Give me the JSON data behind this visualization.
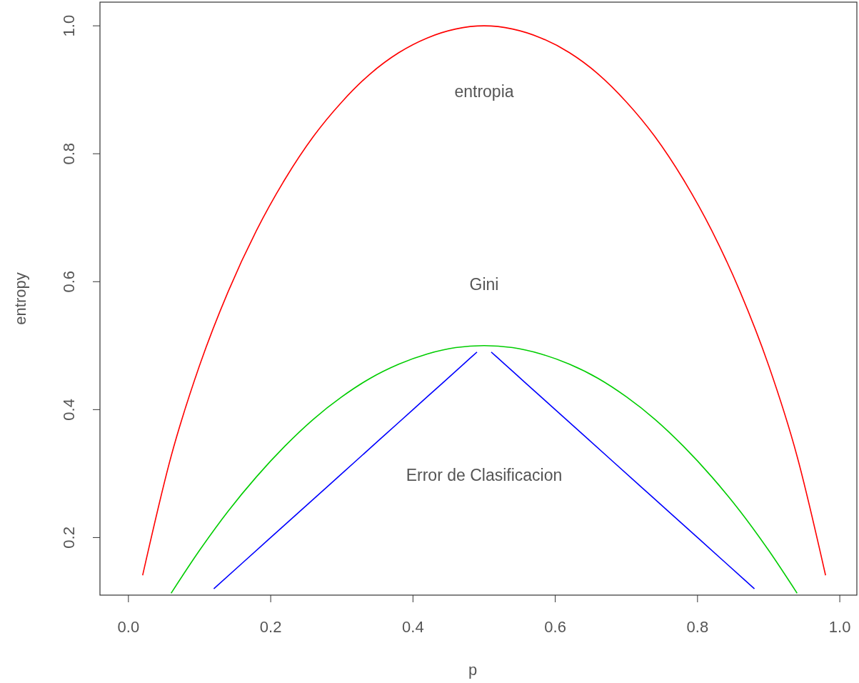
{
  "chart_data": {
    "type": "line",
    "xlabel": "p",
    "ylabel": "entropy",
    "xlim": [
      -0.04,
      1.024
    ],
    "ylim": [
      0.11,
      1.037
    ],
    "xticks": [
      {
        "value": 0,
        "label": "0.0"
      },
      0.2,
      0.4,
      0.6,
      0.8,
      {
        "value": 1,
        "label": "1.0"
      }
    ],
    "yticks": [
      0.2,
      0.4,
      0.6,
      0.8,
      {
        "value": 1,
        "label": "1.0"
      }
    ],
    "grid": false,
    "marker": "none",
    "line_style": "solid",
    "series": [
      {
        "color": "#ff0000",
        "x": [
          0.02,
          0.06,
          0.1,
          0.14,
          0.18,
          0.22,
          0.26,
          0.3,
          0.34,
          0.38,
          0.42,
          0.46,
          0.5,
          0.54,
          0.58,
          0.62,
          0.66,
          0.7,
          0.74,
          0.78,
          0.82,
          0.86,
          0.9,
          0.94,
          0.98
        ],
        "values": [
          0.141,
          0.327,
          0.469,
          0.584,
          0.68,
          0.76,
          0.827,
          0.881,
          0.925,
          0.958,
          0.981,
          0.995,
          1.0,
          0.995,
          0.981,
          0.958,
          0.925,
          0.881,
          0.827,
          0.76,
          0.68,
          0.584,
          0.469,
          0.327,
          0.141
        ]
      },
      {
        "color": "#00cd00",
        "x": [
          0.06,
          0.1,
          0.14,
          0.18,
          0.22,
          0.26,
          0.3,
          0.34,
          0.38,
          0.42,
          0.46,
          0.5,
          0.54,
          0.58,
          0.62,
          0.66,
          0.7,
          0.74,
          0.78,
          0.82,
          0.86,
          0.9,
          0.94
        ],
        "values": [
          0.113,
          0.18,
          0.241,
          0.295,
          0.343,
          0.385,
          0.42,
          0.449,
          0.471,
          0.487,
          0.497,
          0.5,
          0.497,
          0.487,
          0.471,
          0.449,
          0.42,
          0.385,
          0.343,
          0.295,
          0.241,
          0.18,
          0.113
        ]
      },
      {
        "color": "#0000ff",
        "x": [
          0.12,
          0.16,
          0.2,
          0.24,
          0.28,
          0.32,
          0.36,
          0.4,
          0.44,
          0.48,
          0.49,
          0.5,
          0.51,
          0.52,
          0.56,
          0.6,
          0.64,
          0.68,
          0.72,
          0.76,
          0.8,
          0.84,
          0.88
        ],
        "values": [
          0.12,
          0.16,
          0.2,
          0.24,
          0.28,
          0.32,
          0.36,
          0.4,
          0.44,
          0.48,
          0.49,
          null,
          0.49,
          0.48,
          0.44,
          0.4,
          0.36,
          0.32,
          0.28,
          0.24,
          0.2,
          0.16,
          0.12
        ]
      }
    ],
    "annotations": [
      "entropia",
      "Gini",
      "Error de Clasificacion"
    ]
  }
}
